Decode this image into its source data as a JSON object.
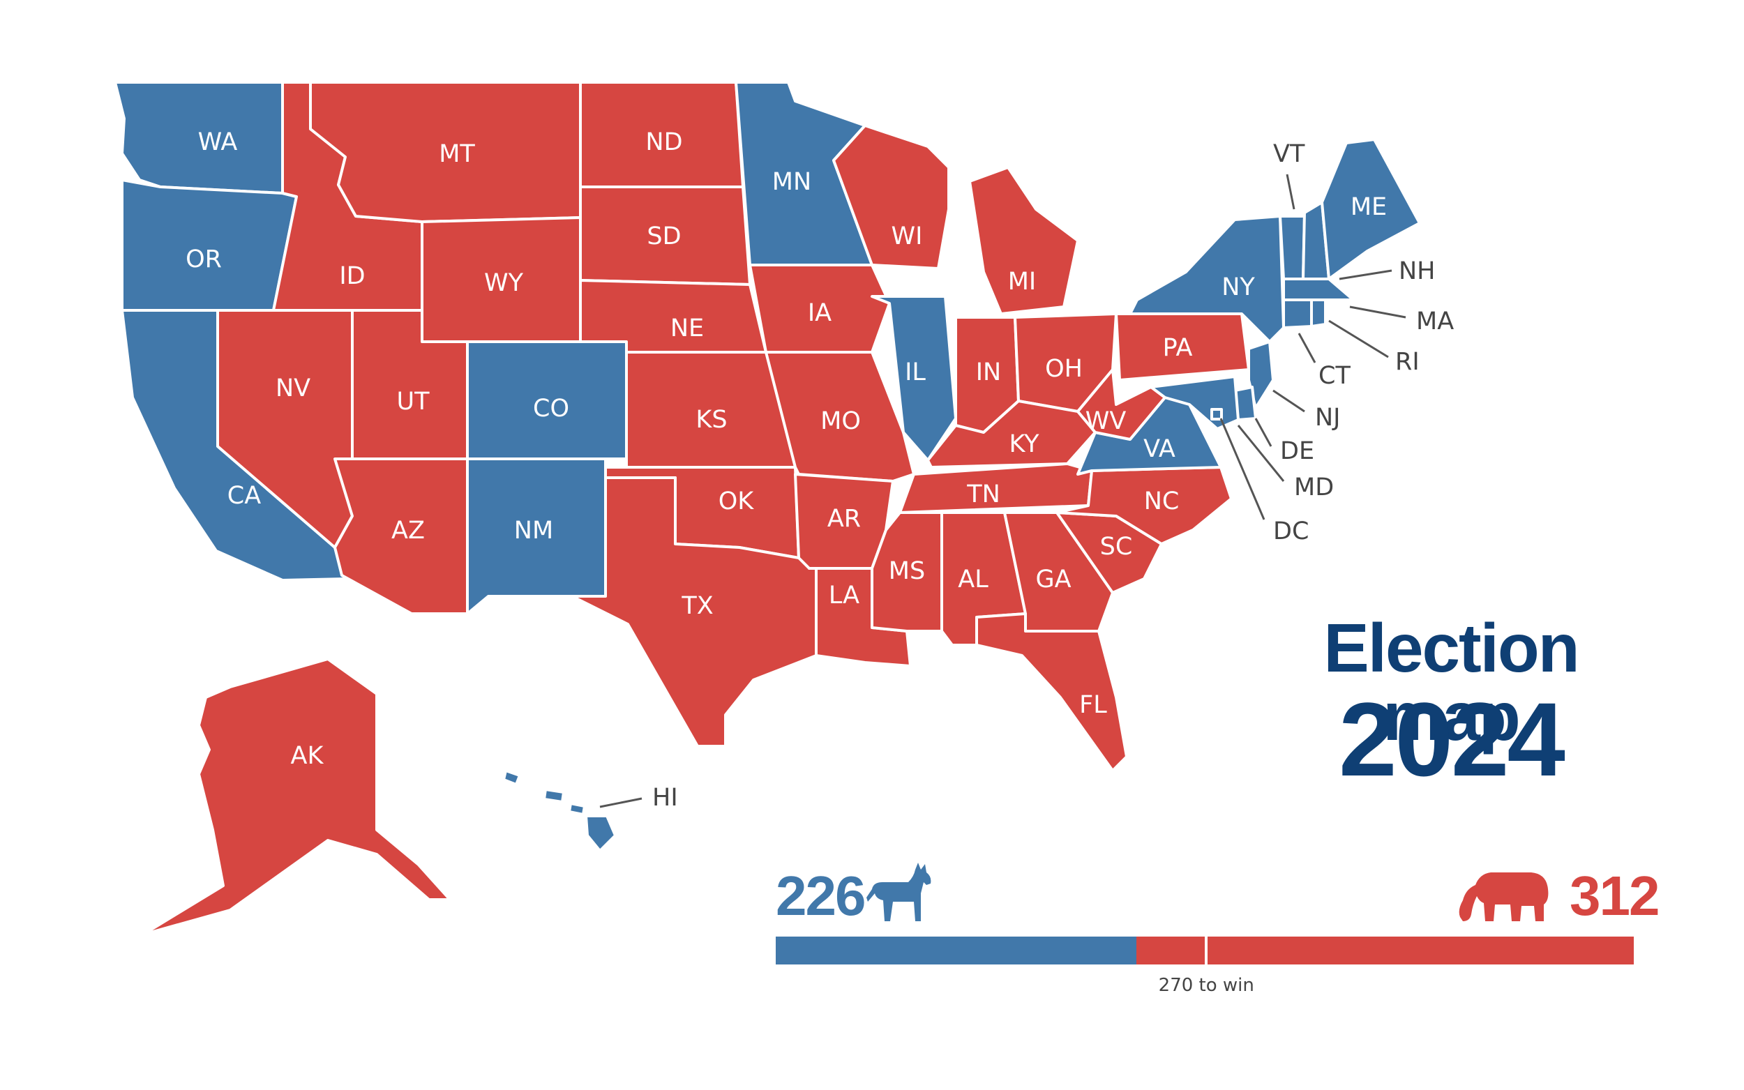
{
  "colors": {
    "dem": "#4178aa",
    "rep": "#d64641",
    "title": "#0f3f74",
    "text_dark": "#444444"
  },
  "title": {
    "line1": "Election map",
    "line2": "2024"
  },
  "tally": {
    "dem_votes": 226,
    "rep_votes": 312,
    "total_votes": 538,
    "threshold": 270,
    "threshold_label": "270 to win",
    "dem_mascot": "donkey-icon",
    "rep_mascot": "elephant-icon"
  },
  "states": [
    {
      "abbr": "WA",
      "party": "dem"
    },
    {
      "abbr": "OR",
      "party": "dem"
    },
    {
      "abbr": "CA",
      "party": "dem"
    },
    {
      "abbr": "NV",
      "party": "rep"
    },
    {
      "abbr": "ID",
      "party": "rep"
    },
    {
      "abbr": "MT",
      "party": "rep"
    },
    {
      "abbr": "WY",
      "party": "rep"
    },
    {
      "abbr": "UT",
      "party": "rep"
    },
    {
      "abbr": "CO",
      "party": "dem"
    },
    {
      "abbr": "AZ",
      "party": "rep"
    },
    {
      "abbr": "NM",
      "party": "dem"
    },
    {
      "abbr": "ND",
      "party": "rep"
    },
    {
      "abbr": "SD",
      "party": "rep"
    },
    {
      "abbr": "NE",
      "party": "rep"
    },
    {
      "abbr": "KS",
      "party": "rep"
    },
    {
      "abbr": "OK",
      "party": "rep"
    },
    {
      "abbr": "TX",
      "party": "rep"
    },
    {
      "abbr": "MN",
      "party": "dem"
    },
    {
      "abbr": "IA",
      "party": "rep"
    },
    {
      "abbr": "MO",
      "party": "rep"
    },
    {
      "abbr": "AR",
      "party": "rep"
    },
    {
      "abbr": "LA",
      "party": "rep"
    },
    {
      "abbr": "WI",
      "party": "rep"
    },
    {
      "abbr": "IL",
      "party": "dem"
    },
    {
      "abbr": "MI",
      "party": "rep"
    },
    {
      "abbr": "IN",
      "party": "rep"
    },
    {
      "abbr": "OH",
      "party": "rep"
    },
    {
      "abbr": "KY",
      "party": "rep"
    },
    {
      "abbr": "TN",
      "party": "rep"
    },
    {
      "abbr": "MS",
      "party": "rep"
    },
    {
      "abbr": "AL",
      "party": "rep"
    },
    {
      "abbr": "GA",
      "party": "rep"
    },
    {
      "abbr": "FL",
      "party": "rep"
    },
    {
      "abbr": "SC",
      "party": "rep"
    },
    {
      "abbr": "NC",
      "party": "rep"
    },
    {
      "abbr": "VA",
      "party": "dem"
    },
    {
      "abbr": "WV",
      "party": "rep"
    },
    {
      "abbr": "PA",
      "party": "rep"
    },
    {
      "abbr": "NY",
      "party": "dem"
    },
    {
      "abbr": "VT",
      "party": "dem"
    },
    {
      "abbr": "NH",
      "party": "dem"
    },
    {
      "abbr": "ME",
      "party": "dem"
    },
    {
      "abbr": "MA",
      "party": "dem"
    },
    {
      "abbr": "RI",
      "party": "dem"
    },
    {
      "abbr": "CT",
      "party": "dem"
    },
    {
      "abbr": "NJ",
      "party": "dem"
    },
    {
      "abbr": "DE",
      "party": "dem"
    },
    {
      "abbr": "MD",
      "party": "dem"
    },
    {
      "abbr": "DC",
      "party": "dem"
    },
    {
      "abbr": "AK",
      "party": "rep"
    },
    {
      "abbr": "HI",
      "party": "dem"
    }
  ]
}
